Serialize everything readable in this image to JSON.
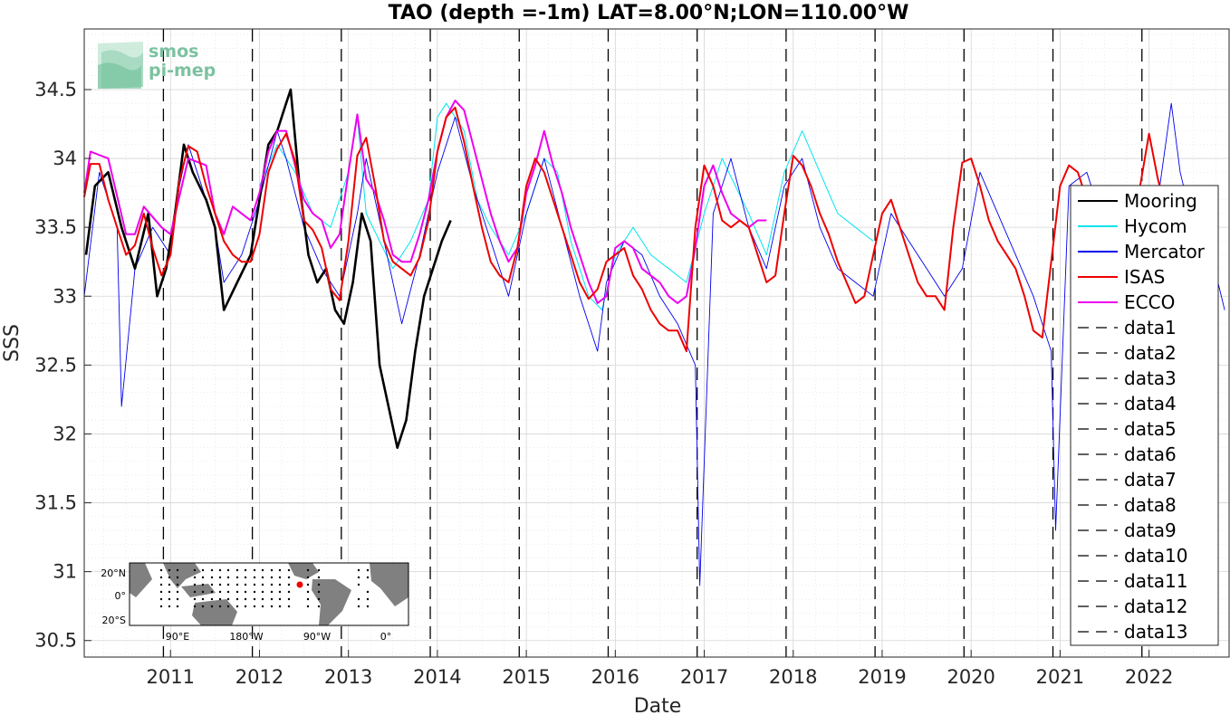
{
  "chart_data": {
    "type": "line",
    "title": "TAO (depth =-1m) LAT=8.00°N;LON=110.00°W",
    "xlabel": "Date",
    "ylabel": "SSS",
    "xlim": [
      2010.03,
      2022.9
    ],
    "ylim": [
      30.38,
      34.94
    ],
    "x_ticks": [
      2011,
      2012,
      2013,
      2014,
      2015,
      2016,
      2017,
      2018,
      2019,
      2020,
      2021,
      2022
    ],
    "x_tick_labels": [
      "2011",
      "2012",
      "2013",
      "2014",
      "2015",
      "2016",
      "2017",
      "2018",
      "2019",
      "2020",
      "2021",
      "2022"
    ],
    "y_ticks": [
      30.5,
      31,
      31.5,
      32,
      32.5,
      33,
      33.5,
      34,
      34.5
    ],
    "y_tick_labels": [
      "30.5",
      "31",
      "31.5",
      "32",
      "32.5",
      "33",
      "33.5",
      "34",
      "34.5"
    ],
    "grid": true,
    "minor_grid": true,
    "legend_position": "right",
    "series": [
      {
        "name": "Mooring",
        "color": "#000000",
        "x": [
          2010.05,
          2010.15,
          2010.3,
          2010.45,
          2010.6,
          2010.75,
          2010.85,
          2010.95,
          2011.05,
          2011.15,
          2011.25,
          2011.4,
          2011.5,
          2011.6,
          2011.75,
          2011.9,
          2012.0,
          2012.1,
          2012.2,
          2012.3,
          2012.35,
          2012.45,
          2012.55,
          2012.65,
          2012.75,
          2012.85,
          2012.95,
          2013.05,
          2013.15,
          2013.25,
          2013.35,
          2013.45,
          2013.55,
          2013.65,
          2013.75,
          2013.85,
          2013.95,
          2014.05,
          2014.15
        ],
        "y": [
          33.3,
          33.8,
          33.9,
          33.5,
          33.2,
          33.6,
          33.0,
          33.2,
          33.6,
          34.1,
          33.9,
          33.7,
          33.5,
          32.9,
          33.1,
          33.3,
          33.7,
          34.1,
          34.2,
          34.4,
          34.5,
          33.8,
          33.3,
          33.1,
          33.2,
          32.9,
          32.8,
          33.1,
          33.6,
          33.4,
          32.5,
          32.2,
          31.9,
          32.1,
          32.6,
          33.0,
          33.2,
          33.4,
          33.55
        ]
      },
      {
        "name": "Hycom",
        "color": "#00e5ee",
        "x": [
          2012.0,
          2012.2,
          2012.4,
          2012.6,
          2012.8,
          2013.0,
          2013.1,
          2013.2,
          2013.35,
          2013.5,
          2013.7,
          2013.9,
          2014.0,
          2014.1,
          2014.2,
          2014.3,
          2014.45,
          2014.6,
          2014.8,
          2015.0,
          2015.2,
          2015.35,
          2015.5,
          2015.7,
          2015.85,
          2016.0,
          2016.2,
          2016.4,
          2016.6,
          2016.8,
          2017.0,
          2017.2,
          2017.35,
          2017.5,
          2017.7,
          2017.9,
          2018.1,
          2018.3,
          2018.5,
          2018.7,
          2018.9
        ],
        "y": [
          33.8,
          34.1,
          33.9,
          33.6,
          33.5,
          33.9,
          34.3,
          33.6,
          33.4,
          33.2,
          33.4,
          33.7,
          34.3,
          34.4,
          34.3,
          34.2,
          33.7,
          33.5,
          33.3,
          33.6,
          34.0,
          33.9,
          33.4,
          33.0,
          32.9,
          33.3,
          33.5,
          33.3,
          33.2,
          33.1,
          33.6,
          34.0,
          33.8,
          33.6,
          33.3,
          33.9,
          34.2,
          33.9,
          33.6,
          33.5,
          33.4
        ]
      },
      {
        "name": "Mercator",
        "color": "#0000ee",
        "x": [
          2010.03,
          2010.2,
          2010.4,
          2010.45,
          2010.6,
          2010.8,
          2011.0,
          2011.1,
          2011.2,
          2011.3,
          2011.5,
          2011.6,
          2011.8,
          2012.0,
          2012.2,
          2012.3,
          2012.5,
          2012.7,
          2012.9,
          2013.1,
          2013.2,
          2013.4,
          2013.6,
          2013.8,
          2014.0,
          2014.2,
          2014.4,
          2014.6,
          2014.8,
          2015.0,
          2015.2,
          2015.4,
          2015.6,
          2015.8,
          2015.9,
          2016.1,
          2016.3,
          2016.5,
          2016.7,
          2016.9,
          2016.95,
          2017.1,
          2017.3,
          2017.5,
          2017.7,
          2017.9,
          2018.1,
          2018.3,
          2018.5,
          2018.7,
          2018.9,
          2019.1,
          2019.3,
          2019.5,
          2019.7,
          2019.9,
          2020.1,
          2020.3,
          2020.5,
          2020.7,
          2020.9,
          2020.95,
          2021.1,
          2021.3,
          2021.5,
          2021.7,
          2021.9,
          2022.1,
          2022.25,
          2022.35,
          2022.5,
          2022.7,
          2022.85
        ],
        "y": [
          33.0,
          33.9,
          33.5,
          32.2,
          33.2,
          33.5,
          33.3,
          33.8,
          34.1,
          33.9,
          33.5,
          33.1,
          33.3,
          33.7,
          34.2,
          34.0,
          33.5,
          33.2,
          33.0,
          33.6,
          34.0,
          33.4,
          32.8,
          33.3,
          33.9,
          34.3,
          33.8,
          33.4,
          33.0,
          33.6,
          34.0,
          33.5,
          33.0,
          32.6,
          33.1,
          33.4,
          33.3,
          33.0,
          32.8,
          32.5,
          30.9,
          33.6,
          34.0,
          33.5,
          33.2,
          33.8,
          34.0,
          33.5,
          33.2,
          33.1,
          33.0,
          33.6,
          33.4,
          33.2,
          33.0,
          33.2,
          33.9,
          33.6,
          33.3,
          33.0,
          32.6,
          31.3,
          33.8,
          33.9,
          33.5,
          33.3,
          33.1,
          33.7,
          34.4,
          33.9,
          33.5,
          33.3,
          32.9
        ]
      },
      {
        "name": "ISAS",
        "color": "#ee0000",
        "x": [
          2010.03,
          2010.1,
          2010.2,
          2010.3,
          2010.4,
          2010.5,
          2010.6,
          2010.7,
          2010.8,
          2010.9,
          2011.0,
          2011.1,
          2011.2,
          2011.3,
          2011.4,
          2011.5,
          2011.6,
          2011.7,
          2011.8,
          2011.9,
          2012.0,
          2012.1,
          2012.2,
          2012.3,
          2012.4,
          2012.5,
          2012.6,
          2012.7,
          2012.8,
          2012.9,
          2013.0,
          2013.1,
          2013.2,
          2013.3,
          2013.4,
          2013.5,
          2013.6,
          2013.7,
          2013.8,
          2013.9,
          2014.0,
          2014.1,
          2014.2,
          2014.3,
          2014.4,
          2014.5,
          2014.6,
          2014.7,
          2014.8,
          2014.9,
          2015.0,
          2015.1,
          2015.2,
          2015.3,
          2015.4,
          2015.5,
          2015.6,
          2015.7,
          2015.8,
          2015.9,
          2016.0,
          2016.1,
          2016.2,
          2016.3,
          2016.4,
          2016.5,
          2016.6,
          2016.7,
          2016.8,
          2016.9,
          2017.0,
          2017.1,
          2017.2,
          2017.3,
          2017.4,
          2017.5,
          2017.6,
          2017.7,
          2017.8,
          2017.9,
          2018.0,
          2018.1,
          2018.2,
          2018.3,
          2018.4,
          2018.5,
          2018.6,
          2018.7,
          2018.8,
          2018.9,
          2019.0,
          2019.1,
          2019.2,
          2019.3,
          2019.4,
          2019.5,
          2019.6,
          2019.7,
          2019.8,
          2019.9,
          2020.0,
          2020.1,
          2020.2,
          2020.3,
          2020.4,
          2020.5,
          2020.6,
          2020.7,
          2020.8,
          2020.9,
          2021.0,
          2021.1,
          2021.2,
          2021.3,
          2021.4,
          2021.5,
          2021.6,
          2021.7,
          2021.8,
          2021.9,
          2022.0,
          2022.1,
          2022.2,
          2022.3,
          2022.4
        ],
        "y": [
          33.72,
          33.96,
          33.96,
          33.7,
          33.5,
          33.3,
          33.37,
          33.6,
          33.35,
          33.15,
          33.3,
          33.84,
          34.09,
          34.05,
          33.8,
          33.6,
          33.4,
          33.3,
          33.25,
          33.25,
          33.45,
          33.9,
          34.07,
          34.18,
          33.98,
          33.55,
          33.48,
          33.35,
          33.05,
          32.97,
          33.4,
          34.02,
          34.15,
          33.8,
          33.4,
          33.25,
          33.2,
          33.15,
          33.28,
          33.55,
          34.05,
          34.3,
          34.37,
          34.12,
          33.8,
          33.5,
          33.25,
          33.15,
          33.1,
          33.35,
          33.8,
          34.0,
          33.9,
          33.7,
          33.5,
          33.3,
          33.1,
          32.98,
          33.05,
          33.25,
          33.3,
          33.35,
          33.15,
          33.05,
          32.9,
          32.8,
          32.75,
          32.75,
          32.6,
          33.5,
          33.95,
          33.8,
          33.55,
          33.5,
          33.55,
          33.5,
          33.3,
          33.1,
          33.15,
          33.6,
          34.02,
          33.95,
          33.8,
          33.6,
          33.45,
          33.25,
          33.1,
          32.95,
          33.0,
          33.3,
          33.6,
          33.7,
          33.5,
          33.3,
          33.1,
          33.0,
          33.0,
          32.9,
          33.5,
          33.97,
          34.0,
          33.8,
          33.55,
          33.4,
          33.3,
          33.2,
          33.0,
          32.75,
          32.7,
          33.25,
          33.8,
          33.95,
          33.9,
          33.7,
          33.5,
          33.35,
          33.2,
          33.1,
          33.3,
          33.8,
          34.18,
          33.85,
          33.6,
          33.5,
          33.4
        ]
      },
      {
        "name": "ECCO",
        "color": "#ee00ee",
        "x": [
          2010.03,
          2010.1,
          2010.3,
          2010.5,
          2010.6,
          2010.7,
          2010.9,
          2011.0,
          2011.2,
          2011.4,
          2011.5,
          2011.6,
          2011.7,
          2011.8,
          2011.9,
          2012.0,
          2012.1,
          2012.2,
          2012.3,
          2012.4,
          2012.5,
          2012.6,
          2012.7,
          2012.8,
          2012.9,
          2013.0,
          2013.1,
          2013.2,
          2013.3,
          2013.4,
          2013.5,
          2013.6,
          2013.7,
          2013.8,
          2013.9,
          2014.0,
          2014.1,
          2014.2,
          2014.3,
          2014.4,
          2014.5,
          2014.6,
          2014.7,
          2014.8,
          2014.9,
          2015.0,
          2015.1,
          2015.2,
          2015.3,
          2015.4,
          2015.5,
          2015.6,
          2015.7,
          2015.8,
          2015.9,
          2016.0,
          2016.1,
          2016.2,
          2016.3,
          2016.4,
          2016.5,
          2016.6,
          2016.7,
          2016.8,
          2016.9,
          2017.0,
          2017.1,
          2017.2,
          2017.3,
          2017.4,
          2017.5,
          2017.6,
          2017.7
        ],
        "y": [
          33.75,
          34.05,
          34.0,
          33.45,
          33.45,
          33.65,
          33.5,
          33.45,
          34.0,
          33.95,
          33.6,
          33.45,
          33.65,
          33.6,
          33.55,
          33.75,
          34.05,
          34.2,
          34.2,
          33.95,
          33.7,
          33.6,
          33.55,
          33.35,
          33.45,
          33.9,
          34.32,
          33.85,
          33.75,
          33.55,
          33.3,
          33.25,
          33.25,
          33.45,
          33.7,
          34.05,
          34.3,
          34.42,
          34.35,
          34.1,
          33.85,
          33.6,
          33.4,
          33.25,
          33.35,
          33.75,
          33.95,
          34.2,
          33.95,
          33.75,
          33.5,
          33.3,
          33.1,
          32.95,
          33.0,
          33.35,
          33.4,
          33.35,
          33.2,
          33.15,
          33.1,
          33.0,
          32.95,
          33.0,
          33.35,
          33.8,
          33.95,
          33.75,
          33.6,
          33.55,
          33.5,
          33.55,
          33.55
        ]
      }
    ],
    "vlines": [
      {
        "name": "data1",
        "x": 2010.92
      },
      {
        "name": "data2",
        "x": 2011.92
      },
      {
        "name": "data3",
        "x": 2012.92
      },
      {
        "name": "data4",
        "x": 2013.92
      },
      {
        "name": "data5",
        "x": 2014.92
      },
      {
        "name": "data6",
        "x": 2015.92
      },
      {
        "name": "data7",
        "x": 2016.92
      },
      {
        "name": "data8",
        "x": 2017.92
      },
      {
        "name": "data9",
        "x": 2018.92
      },
      {
        "name": "data10",
        "x": 2019.92
      },
      {
        "name": "data11",
        "x": 2020.92
      },
      {
        "name": "data12",
        "x": 2021.92
      },
      {
        "name": "data13",
        "x": 2022.92
      }
    ],
    "legend": [
      "Mooring",
      "Hycom",
      "Mercator",
      "ISAS",
      "ECCO",
      "data1",
      "data2",
      "data3",
      "data4",
      "data5",
      "data6",
      "data7",
      "data8",
      "data9",
      "data10",
      "data11",
      "data12",
      "data13"
    ]
  },
  "logo": {
    "line1": "smos",
    "line2": "pi-mep"
  },
  "inset_map": {
    "lat_labels": [
      "20°N",
      "0°",
      "20°S"
    ],
    "lon_labels": [
      "90°E",
      "180°W",
      "90°W",
      "0°"
    ],
    "marker_color": "#ee0000",
    "land_color": "#808080"
  },
  "colors": {
    "axis": "#262626",
    "grid": "#dcdcdc",
    "background": "#ffffff"
  }
}
